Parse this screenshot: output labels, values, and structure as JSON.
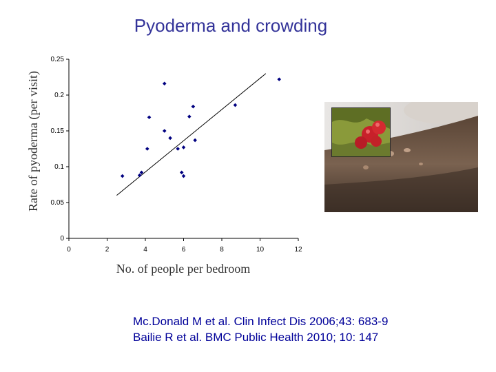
{
  "slide": {
    "title": "Pyoderma and crowding",
    "references": [
      "Mc.Donald M et al. Clin Infect Dis  2006;43: 683-9",
      "Bailie R et al. BMC Public Health 2010; 10: 147"
    ]
  },
  "chart_data": {
    "type": "scatter",
    "xlabel": "No. of people per bedroom",
    "ylabel": "Rate of pyoderma (per visit)",
    "xlim": [
      0,
      12
    ],
    "ylim": [
      0,
      0.25
    ],
    "x_ticks": [
      "0",
      "2",
      "4",
      "6",
      "8",
      "10",
      "12"
    ],
    "y_ticks": [
      "0",
      "0.05",
      "0.1",
      "0.15",
      "0.2",
      "0.25"
    ],
    "grid": false,
    "marker_color": "#000080",
    "points": [
      {
        "x": 2.8,
        "y": 0.087
      },
      {
        "x": 3.7,
        "y": 0.088
      },
      {
        "x": 3.8,
        "y": 0.092
      },
      {
        "x": 4.1,
        "y": 0.125
      },
      {
        "x": 4.2,
        "y": 0.169
      },
      {
        "x": 5.0,
        "y": 0.216
      },
      {
        "x": 5.0,
        "y": 0.15
      },
      {
        "x": 5.3,
        "y": 0.14
      },
      {
        "x": 5.7,
        "y": 0.125
      },
      {
        "x": 5.9,
        "y": 0.092
      },
      {
        "x": 6.0,
        "y": 0.127
      },
      {
        "x": 6.0,
        "y": 0.087
      },
      {
        "x": 6.3,
        "y": 0.17
      },
      {
        "x": 6.5,
        "y": 0.184
      },
      {
        "x": 6.6,
        "y": 0.137
      },
      {
        "x": 8.7,
        "y": 0.186
      },
      {
        "x": 11.0,
        "y": 0.222
      }
    ],
    "trendline": {
      "x": [
        2.5,
        10.3
      ],
      "y": [
        0.06,
        0.23
      ],
      "color": "#000000"
    }
  },
  "photo": {
    "description_icon": "skin-lesion-photo",
    "inset_icon": "bacteria-micrograph"
  }
}
